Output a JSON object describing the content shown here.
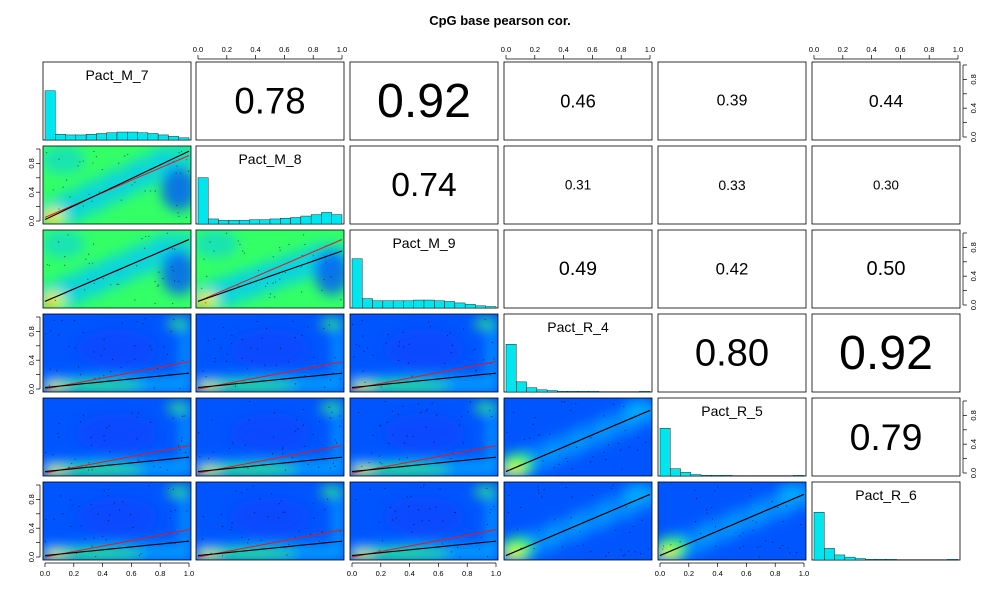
{
  "chart_data": {
    "type": "scatter-matrix",
    "title": "CpG base pearson cor.",
    "variables": [
      "Pact_M_7",
      "Pact_M_8",
      "Pact_M_9",
      "Pact_R_4",
      "Pact_R_5",
      "Pact_R_6"
    ],
    "tick_labels": [
      "0.0",
      "0.2",
      "0.4",
      "0.6",
      "0.8",
      "1.0"
    ],
    "axis_range": [
      0,
      1
    ],
    "correlations": [
      {
        "row": 0,
        "col": 1,
        "label": "0.78",
        "value": 0.78
      },
      {
        "row": 0,
        "col": 2,
        "label": "0.92",
        "value": 0.92
      },
      {
        "row": 0,
        "col": 3,
        "label": "0.46",
        "value": 0.46
      },
      {
        "row": 0,
        "col": 4,
        "label": "0.39",
        "value": 0.39
      },
      {
        "row": 0,
        "col": 5,
        "label": "0.44",
        "value": 0.44
      },
      {
        "row": 1,
        "col": 2,
        "label": "0.74",
        "value": 0.74
      },
      {
        "row": 1,
        "col": 3,
        "label": "0.31",
        "value": 0.31
      },
      {
        "row": 1,
        "col": 4,
        "label": "0.33",
        "value": 0.33
      },
      {
        "row": 1,
        "col": 5,
        "label": "0.30",
        "value": 0.3
      },
      {
        "row": 2,
        "col": 3,
        "label": "0.49",
        "value": 0.49
      },
      {
        "row": 2,
        "col": 4,
        "label": "0.42",
        "value": 0.42
      },
      {
        "row": 2,
        "col": 5,
        "label": "0.50",
        "value": 0.5
      },
      {
        "row": 3,
        "col": 4,
        "label": "0.80",
        "value": 0.8
      },
      {
        "row": 3,
        "col": 5,
        "label": "0.92",
        "value": 0.92
      },
      {
        "row": 4,
        "col": 5,
        "label": "0.79",
        "value": 0.79
      }
    ],
    "histograms": [
      [
        0.68,
        0.08,
        0.07,
        0.07,
        0.08,
        0.09,
        0.1,
        0.11,
        0.11,
        0.1,
        0.09,
        0.07,
        0.05,
        0.03
      ],
      [
        0.64,
        0.07,
        0.05,
        0.05,
        0.05,
        0.06,
        0.06,
        0.07,
        0.08,
        0.09,
        0.11,
        0.13,
        0.16,
        0.13
      ],
      [
        0.68,
        0.13,
        0.1,
        0.1,
        0.1,
        0.1,
        0.11,
        0.11,
        0.1,
        0.09,
        0.07,
        0.05,
        0.03,
        0.02
      ],
      [
        0.66,
        0.14,
        0.06,
        0.03,
        0.02,
        0.01,
        0.01,
        0.01,
        0.01,
        0.005,
        0.005,
        0.005,
        0.005,
        0.01
      ],
      [
        0.66,
        0.1,
        0.05,
        0.02,
        0.01,
        0.01,
        0.01,
        0.005,
        0.005,
        0.005,
        0.005,
        0.005,
        0.005,
        0.01
      ],
      [
        0.66,
        0.16,
        0.07,
        0.04,
        0.02,
        0.01,
        0.01,
        0.01,
        0.005,
        0.005,
        0.005,
        0.005,
        0.005,
        0.01
      ]
    ],
    "density_colors": [
      "#0000aa",
      "#0055ff",
      "#00c8ff",
      "#33ff66",
      "#ffff00",
      "#ff9900"
    ],
    "loess_color": "#000000",
    "regression_color": "#e41a1c",
    "histogram_color": "#00e5ee"
  }
}
